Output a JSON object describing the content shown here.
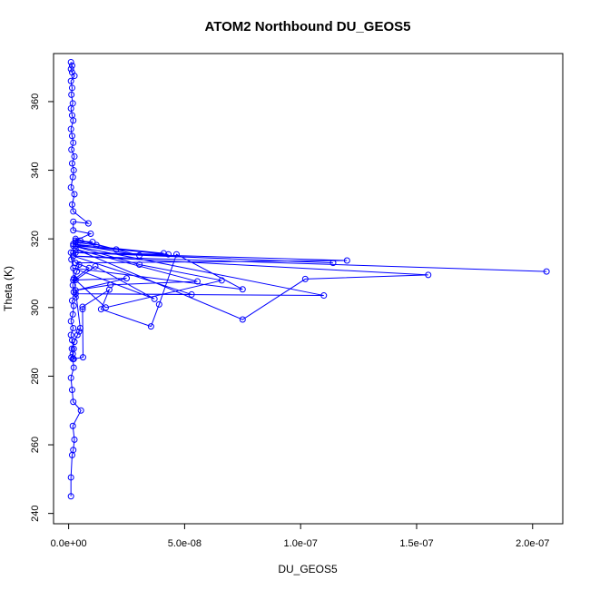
{
  "chart_data": {
    "type": "line",
    "title": "ATOM2 Northbound DU_GEOS5",
    "xlabel": "DU_GEOS5",
    "ylabel": "Theta (K)",
    "xlim": [
      -6.5e-09,
      2.13e-07
    ],
    "ylim": [
      237,
      374
    ],
    "xticks": [
      {
        "value": 0,
        "label": "0.0e+00"
      },
      {
        "value": 5e-08,
        "label": "5.0e-08"
      },
      {
        "value": 1e-07,
        "label": "1.0e-07"
      },
      {
        "value": 1.5e-07,
        "label": "1.5e-07"
      },
      {
        "value": 2e-07,
        "label": "2.0e-07"
      }
    ],
    "yticks": [
      240,
      260,
      280,
      300,
      320,
      340,
      360
    ],
    "grid": false,
    "legend": "none",
    "marker": "open-circle",
    "color": "#0000ff",
    "series": [
      {
        "x": [
          1e-09,
          1e-09,
          1.5e-09,
          2e-09,
          2.5e-09,
          1.8e-09,
          5.3e-09,
          2e-09,
          1.5e-09,
          1e-09,
          2.2e-09,
          1.8e-09,
          2.2e-09,
          1.5e-09,
          1e-09,
          2e-09,
          1e-09,
          1.8e-09,
          2.2e-09,
          1.5e-09,
          3e-09,
          2.2e-09,
          1.8e-09,
          2.3e-09,
          3.5e-09,
          4.5e-09,
          1.2e-09,
          1e-09,
          5e-09,
          4.5e-09,
          3.8e-09,
          2.5e-09,
          1.4e-09,
          1.8e-09,
          1.2e-09,
          2.2e-09,
          6.2e-09,
          6e-09,
          6e-09,
          1.75e-08,
          1.4e-08,
          3.55e-08,
          3.9e-08,
          4.65e-08,
          7.5e-08,
          2e-09,
          3.7e-08,
          1.15e-08,
          3e-09,
          1.6e-08,
          6.6e-08,
          3.05e-08,
          2e-09,
          1.1e-07,
          3e-09,
          5.3e-08,
          2e-09,
          2.06e-07,
          2e-09,
          1.55e-07,
          1.02e-07,
          7.5e-08,
          3e-09,
          5.55e-08,
          1.8e-08,
          3e-09,
          2.5e-08,
          2e-09,
          8.8e-09,
          3e-09,
          1.2e-07,
          2e-09,
          1.14e-07,
          3e-09,
          4.3e-08,
          3e-09,
          4.1e-08,
          2e-09,
          3.05e-08,
          3e-09,
          2.05e-08,
          5e-09,
          1.2e-08,
          3e-09,
          1.03e-08,
          3e-09,
          9.5e-09,
          2e-09,
          2e-09,
          8.5e-09,
          2e-09,
          1.5e-09,
          2.5e-09,
          1e-09,
          1.8e-09,
          2.2e-09,
          1.5e-09,
          2.5e-09,
          1.2e-09,
          2e-09,
          1.5e-09,
          1e-09,
          2e-09,
          1.5e-09,
          1e-09,
          1.8e-09,
          1.2e-09,
          1.5e-09,
          1e-09,
          2.5e-09,
          1.5e-09,
          1e-09,
          1.5e-09,
          1e-09
        ],
        "y": [
          245,
          250.5,
          257,
          258.5,
          261.5,
          265.5,
          270,
          272.5,
          276,
          279.5,
          282.5,
          285,
          288,
          290.5,
          292,
          294,
          296,
          298,
          300.5,
          302,
          303,
          304.5,
          306.5,
          308.5,
          310.5,
          312.5,
          314,
          316,
          294,
          293,
          292,
          290,
          288,
          286.5,
          285.5,
          285,
          285.5,
          299.5,
          300.2,
          305.2,
          299.5,
          294.5,
          300.9,
          315.5,
          305.3,
          311.5,
          302.5,
          312,
          308,
          300,
          307.9,
          312.5,
          318,
          303.5,
          304,
          303.8,
          315,
          310.5,
          315,
          309.5,
          308.3,
          296.5,
          317,
          307.6,
          306.6,
          305,
          308.5,
          308,
          311.5,
          313,
          313.7,
          316,
          313,
          316,
          315.5,
          318,
          315.8,
          318.5,
          315.2,
          320,
          316.9,
          319.5,
          318.2,
          319,
          319.1,
          319.5,
          321.5,
          322.5,
          325,
          324.5,
          328,
          330,
          333,
          335,
          338,
          340,
          342,
          344,
          346,
          348,
          350,
          352,
          354.5,
          356,
          358,
          359.5,
          362,
          364,
          366,
          367.5,
          368.5,
          369.5,
          370.5,
          371.5
        ]
      }
    ]
  }
}
